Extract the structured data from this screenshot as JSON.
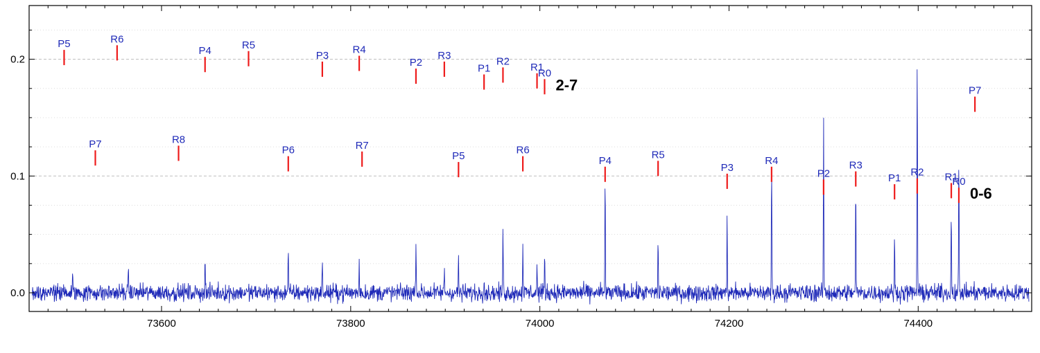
{
  "chart_data": {
    "type": "line",
    "title": "",
    "xlabel": "",
    "ylabel": "",
    "xlim": [
      73460,
      74520
    ],
    "ylim": [
      -0.016,
      0.246
    ],
    "x_ticks": [
      73600,
      73800,
      74000,
      74200,
      74400
    ],
    "x_tick_labels": [
      "73600",
      "73800",
      "74000",
      "74200",
      "74400"
    ],
    "y_ticks": [
      0.0,
      0.1,
      0.2
    ],
    "y_tick_labels": [
      "0.0",
      "0.1",
      "0.2"
    ],
    "grid": "horizontal dashed at y ticks, dotted minor lines",
    "colors": {
      "spectrum": "#1f2ab8",
      "marker": "#ee1b1b",
      "label": "#1f2ab8",
      "grid": "#bdbdbd"
    },
    "spectrum": {
      "noise_level": 0.008,
      "peaks": [
        {
          "x": 73506,
          "y": 0.013
        },
        {
          "x": 73565,
          "y": 0.024
        },
        {
          "x": 73646,
          "y": 0.03
        },
        {
          "x": 73734,
          "y": 0.034
        },
        {
          "x": 73770,
          "y": 0.024
        },
        {
          "x": 73809,
          "y": 0.029
        },
        {
          "x": 73869,
          "y": 0.05
        },
        {
          "x": 73899,
          "y": 0.02
        },
        {
          "x": 73914,
          "y": 0.03
        },
        {
          "x": 73941,
          "y": 0.015
        },
        {
          "x": 73961,
          "y": 0.058
        },
        {
          "x": 73982,
          "y": 0.043
        },
        {
          "x": 73997,
          "y": 0.024
        },
        {
          "x": 74005,
          "y": 0.035
        },
        {
          "x": 74069,
          "y": 0.1
        },
        {
          "x": 74125,
          "y": 0.044
        },
        {
          "x": 74198,
          "y": 0.064
        },
        {
          "x": 74245,
          "y": 0.11
        },
        {
          "x": 74300,
          "y": 0.145
        },
        {
          "x": 74334,
          "y": 0.088
        },
        {
          "x": 74375,
          "y": 0.047
        },
        {
          "x": 74399,
          "y": 0.21
        },
        {
          "x": 74435,
          "y": 0.072
        },
        {
          "x": 74443,
          "y": 0.118
        }
      ]
    },
    "bands": [
      {
        "name": "2-7",
        "lines": [
          {
            "label": "P5",
            "x": 73497,
            "y": 0.208
          },
          {
            "label": "R6",
            "x": 73553,
            "y": 0.212
          },
          {
            "label": "P4",
            "x": 73646,
            "y": 0.202
          },
          {
            "label": "R5",
            "x": 73692,
            "y": 0.207
          },
          {
            "label": "P3",
            "x": 73770,
            "y": 0.198
          },
          {
            "label": "R4",
            "x": 73809,
            "y": 0.203
          },
          {
            "label": "P2",
            "x": 73869,
            "y": 0.192
          },
          {
            "label": "R3",
            "x": 73899,
            "y": 0.198
          },
          {
            "label": "P1",
            "x": 73941,
            "y": 0.187
          },
          {
            "label": "R2",
            "x": 73961,
            "y": 0.193
          },
          {
            "label": "R1",
            "x": 73997,
            "y": 0.188
          },
          {
            "label": "R0",
            "x": 74005,
            "y": 0.183
          }
        ]
      },
      {
        "name": "0-6",
        "lines": [
          {
            "label": "P7",
            "x": 73530,
            "y": 0.122
          },
          {
            "label": "R8",
            "x": 73618,
            "y": 0.126
          },
          {
            "label": "P6",
            "x": 73734,
            "y": 0.117
          },
          {
            "label": "R7",
            "x": 73812,
            "y": 0.121
          },
          {
            "label": "P5",
            "x": 73914,
            "y": 0.112
          },
          {
            "label": "R6",
            "x": 73982,
            "y": 0.117
          },
          {
            "label": "P4",
            "x": 74069,
            "y": 0.108
          },
          {
            "label": "R5",
            "x": 74125,
            "y": 0.113
          },
          {
            "label": "P3",
            "x": 74198,
            "y": 0.102
          },
          {
            "label": "R4",
            "x": 74245,
            "y": 0.108
          },
          {
            "label": "P2",
            "x": 74300,
            "y": 0.097
          },
          {
            "label": "R3",
            "x": 74334,
            "y": 0.104
          },
          {
            "label": "P1",
            "x": 74375,
            "y": 0.093
          },
          {
            "label": "R2",
            "x": 74399,
            "y": 0.098
          },
          {
            "label": "R1",
            "x": 74435,
            "y": 0.094
          },
          {
            "label": "R0",
            "x": 74443,
            "y": 0.09
          }
        ]
      },
      {
        "name": "",
        "lines": [
          {
            "label": "P7",
            "x": 74460,
            "y": 0.168
          }
        ]
      }
    ]
  }
}
